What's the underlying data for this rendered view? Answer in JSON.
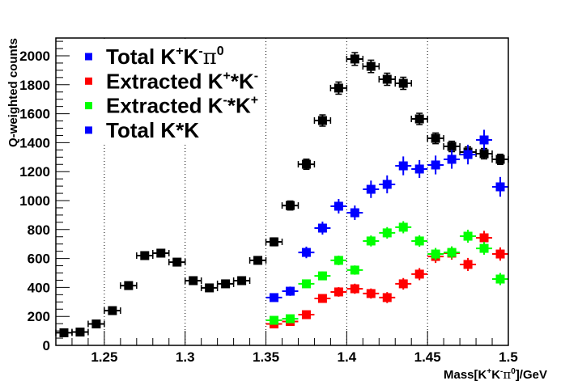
{
  "chart_data": {
    "type": "scatter",
    "title": "",
    "xlabel": "Mass[K+K-π0]/GeV",
    "xlabel_parts": {
      "main": "Mass[K",
      "sup1": "+",
      "mid1": "K",
      "sup2": "-",
      "mid2": "π",
      "sup3": "0",
      "end": "]/GeV"
    },
    "ylabel": "Q-weighted counts",
    "xlim": [
      1.22,
      1.5
    ],
    "ylim": [
      0,
      2130
    ],
    "x_ticks": [
      "1.25",
      "1.3",
      "1.35",
      "1.4",
      "1.45",
      "1.5"
    ],
    "x_tick_values": [
      1.25,
      1.3,
      1.35,
      1.4,
      1.45,
      1.5
    ],
    "y_ticks": [
      "0",
      "200",
      "400",
      "600",
      "800",
      "1000",
      "1200",
      "1400",
      "1600",
      "1800",
      "2000"
    ],
    "y_tick_values": [
      0,
      200,
      400,
      600,
      800,
      1000,
      1200,
      1400,
      1600,
      1800,
      2000
    ],
    "vertical_dotted_lines": [
      1.25,
      1.3,
      1.35,
      1.4,
      1.45
    ],
    "bin_halfwidth": 0.005,
    "legend_position": "top-left",
    "legend": [
      {
        "label": "Total K+K-π0",
        "parts": [
          "Total K",
          "+",
          "K",
          "-",
          "π",
          "0"
        ],
        "color": "#0000ff"
      },
      {
        "label": "Extracted K+*K-",
        "parts": [
          "Extracted K",
          "+",
          "*K",
          "-"
        ],
        "color": "#ff0000"
      },
      {
        "label": "Extracted K-*K+",
        "parts": [
          "Extracted K",
          "-",
          "*K",
          "+"
        ],
        "color": "#00ff00"
      },
      {
        "label": "Total K*K",
        "parts": [
          "Total K*K"
        ],
        "color": "#0000ff"
      }
    ],
    "series": [
      {
        "name": "Total K+K-π0",
        "color": "#000000",
        "x": [
          1.225,
          1.235,
          1.245,
          1.255,
          1.265,
          1.275,
          1.285,
          1.295,
          1.305,
          1.315,
          1.325,
          1.335,
          1.345,
          1.355,
          1.365,
          1.375,
          1.385,
          1.395,
          1.405,
          1.415,
          1.425,
          1.435,
          1.445,
          1.455,
          1.465,
          1.475,
          1.485,
          1.495
        ],
        "y": [
          87,
          92,
          148,
          240,
          413,
          620,
          637,
          575,
          447,
          397,
          425,
          447,
          587,
          715,
          966,
          1251,
          1553,
          1777,
          1978,
          1927,
          1838,
          1810,
          1564,
          1430,
          1374,
          1335,
          1324,
          1285
        ],
        "yerr": [
          10,
          10,
          12,
          15,
          20,
          25,
          25,
          24,
          21,
          20,
          21,
          21,
          24,
          27,
          31,
          35,
          39,
          42,
          44,
          43,
          42,
          42,
          39,
          37,
          36,
          36,
          36,
          35
        ]
      },
      {
        "name": "Extracted K+*K-",
        "color": "#ff0000",
        "x": [
          1.355,
          1.365,
          1.375,
          1.385,
          1.395,
          1.405,
          1.415,
          1.425,
          1.435,
          1.445,
          1.455,
          1.465,
          1.475,
          1.485,
          1.495
        ],
        "y": [
          148,
          165,
          212,
          324,
          369,
          391,
          358,
          330,
          425,
          492,
          614,
          637,
          559,
          743,
          631
        ],
        "yerr": [
          20,
          22,
          25,
          30,
          33,
          35,
          35,
          38,
          40,
          42,
          45,
          45,
          45,
          48,
          46
        ]
      },
      {
        "name": "Extracted K-*K+",
        "color": "#00ff00",
        "x": [
          1.355,
          1.365,
          1.375,
          1.385,
          1.395,
          1.405,
          1.415,
          1.425,
          1.435,
          1.445,
          1.455,
          1.465,
          1.475,
          1.485,
          1.495
        ],
        "y": [
          173,
          184,
          425,
          480,
          587,
          520,
          721,
          777,
          816,
          721,
          631,
          642,
          754,
          670,
          458
        ],
        "yerr": [
          22,
          24,
          28,
          30,
          33,
          32,
          38,
          40,
          42,
          40,
          42,
          42,
          45,
          44,
          42
        ]
      },
      {
        "name": "Total K*K",
        "color": "#0000ff",
        "x": [
          1.355,
          1.365,
          1.375,
          1.385,
          1.395,
          1.405,
          1.415,
          1.425,
          1.435,
          1.445,
          1.455,
          1.465,
          1.475,
          1.485,
          1.495
        ],
        "y": [
          330,
          374,
          642,
          810,
          961,
          916,
          1078,
          1112,
          1240,
          1218,
          1246,
          1285,
          1318,
          1419,
          1095
        ],
        "yerr": [
          28,
          32,
          40,
          45,
          50,
          50,
          60,
          62,
          65,
          62,
          65,
          65,
          68,
          70,
          68
        ]
      }
    ]
  }
}
